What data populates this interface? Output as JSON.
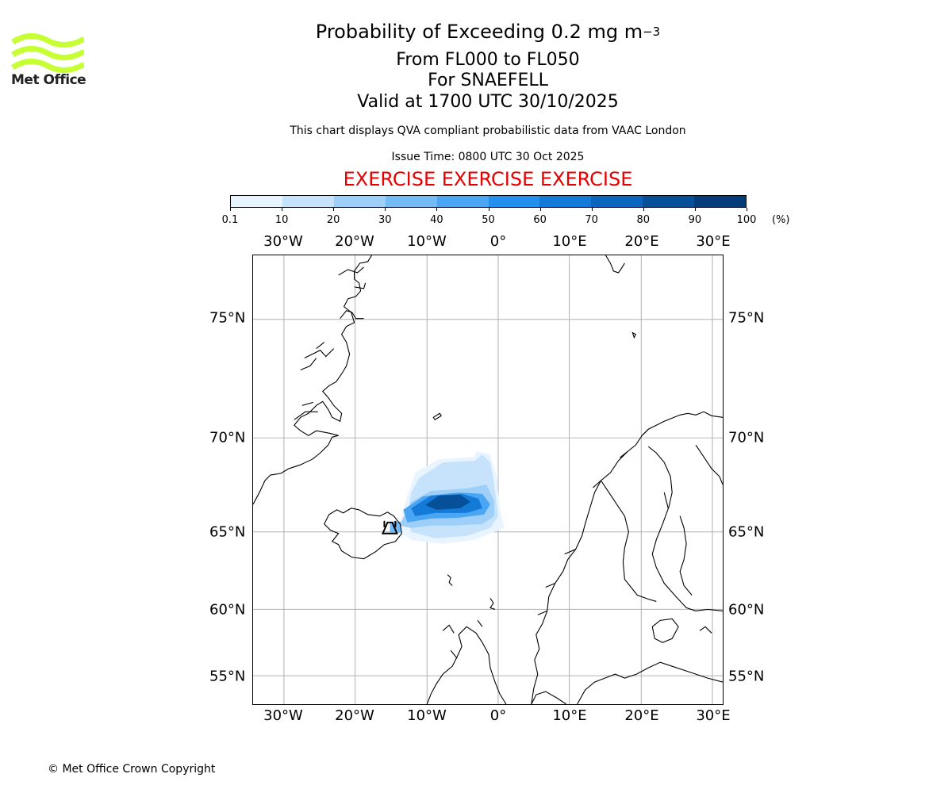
{
  "title": {
    "main": "Probability of Exceeding 0.2 mg m",
    "superscript": "−3",
    "line2": "From FL000 to FL050",
    "line3": "For SNAEFELL",
    "line4": "Valid at 1700 UTC 30/10/2025"
  },
  "description": "This chart displays QVA compliant probabilistic data from VAAC London",
  "issue_time": "Issue Time: 0800 UTC 30 Oct 2025",
  "exercise_banner": "EXERCISE EXERCISE EXERCISE",
  "logo": {
    "text": "Met Office",
    "color": "#c6ff33"
  },
  "colorbar": {
    "unit": "(%)",
    "ticks": [
      "0.1",
      "10",
      "20",
      "30",
      "40",
      "50",
      "60",
      "70",
      "80",
      "90",
      "100"
    ],
    "colors": [
      "#e8f4ff",
      "#c6e3fb",
      "#9ecff8",
      "#74baf5",
      "#4aa5f2",
      "#2490ee",
      "#137ad8",
      "#0b65bd",
      "#06509a",
      "#033c78",
      "#012a58"
    ]
  },
  "map": {
    "lon_labels": [
      "30°W",
      "20°W",
      "10°W",
      "0°",
      "10°E",
      "20°E",
      "30°E"
    ],
    "lat_labels": [
      "75°N",
      "70°N",
      "65°N",
      "60°N",
      "55°N"
    ],
    "volcano_marker": "Snaefell",
    "gridline_color": "#b0b0b0"
  },
  "copyright": "© Met Office Crown Copyright"
}
